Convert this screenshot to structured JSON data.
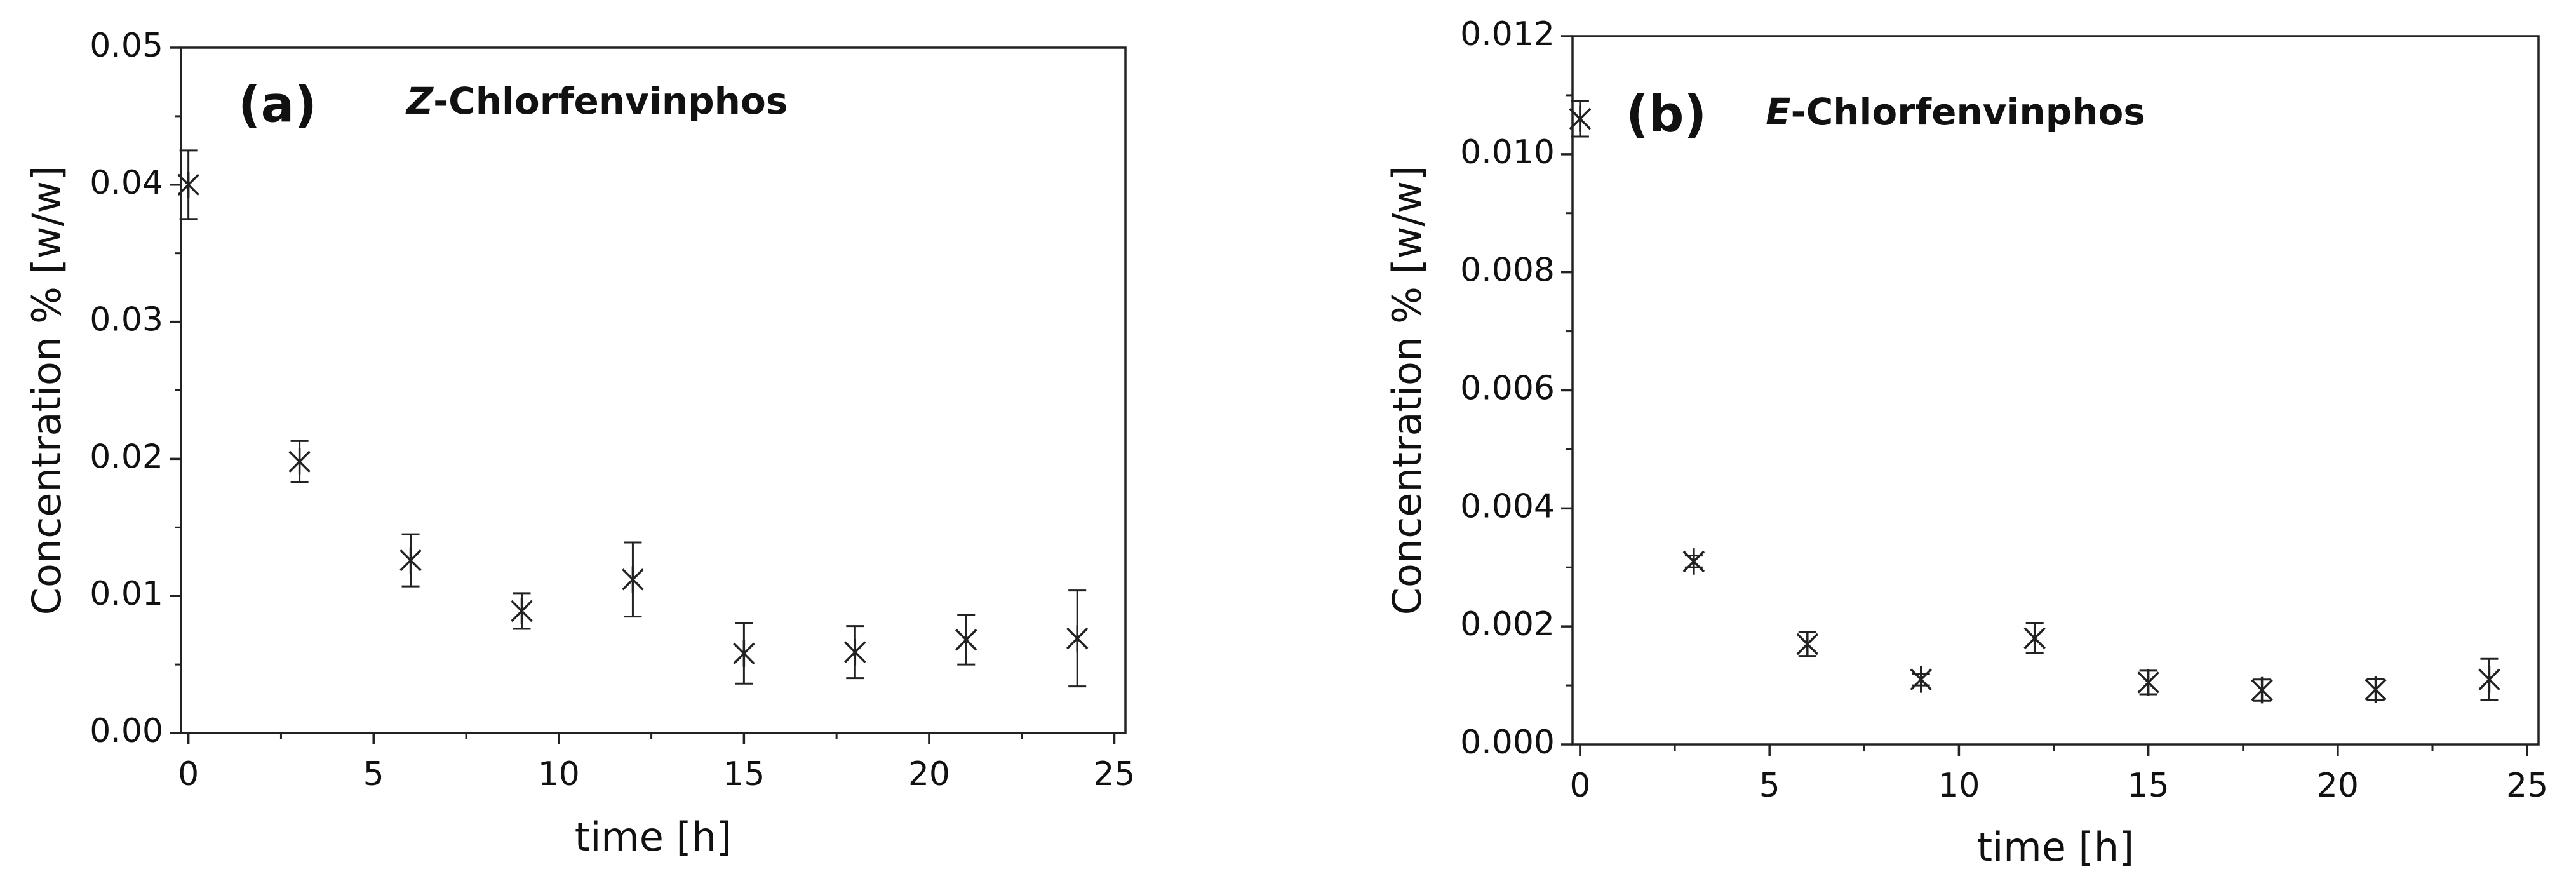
{
  "chart_data": [
    {
      "type": "scatter",
      "label": "(a)",
      "annotation": "Z-Chlorfenvinphos",
      "xlabel": "time [h]",
      "ylabel": "Concentration % [w/w]",
      "x": [
        0,
        3,
        6,
        9,
        12,
        15,
        18,
        21,
        24
      ],
      "series": [
        {
          "color": "#222222",
          "values": [
            0.04,
            0.0198,
            0.0126,
            0.0089,
            0.0112,
            0.0058,
            0.0059,
            0.0068,
            0.0069
          ],
          "errors": [
            0.0025,
            0.0015,
            0.0019,
            0.0013,
            0.0027,
            0.0022,
            0.0019,
            0.0018,
            0.0035
          ]
        }
      ],
      "xlim": [
        -0.2,
        25.3
      ],
      "xticks": [
        0,
        5,
        10,
        15,
        20,
        25
      ],
      "ylim": [
        0,
        0.05
      ],
      "yticks": [
        {
          "value": 0,
          "label": "0.00"
        },
        0.01,
        0.02,
        0.03,
        0.04,
        0.05
      ]
    },
    {
      "type": "scatter",
      "label": "(b)",
      "annotation": "E-Chlorfenvinphos",
      "xlabel": "time [h]",
      "ylabel": "Concentration % [w/w]",
      "x": [
        0,
        3,
        6,
        9,
        12,
        15,
        18,
        21,
        24
      ],
      "series": [
        {
          "color": "#222222",
          "values": [
            0.0106,
            0.0031,
            0.0017,
            0.0011,
            0.0018,
            0.00105,
            0.00092,
            0.00093,
            0.0011
          ],
          "errors": [
            0.0003,
            0.0001,
            0.0002,
            0.0001,
            0.00025,
            0.0002,
            0.00018,
            0.00018,
            0.00035
          ]
        }
      ],
      "xlim": [
        -0.2,
        25.3
      ],
      "xticks": [
        0,
        5,
        10,
        15,
        20,
        25
      ],
      "ylim": [
        0,
        0.012
      ],
      "yticks": [
        {
          "value": 0,
          "label": "0.000"
        },
        0.002,
        0.004,
        0.006,
        0.008,
        {
          "value": 0.01,
          "label": "0.010"
        },
        0.012
      ]
    }
  ]
}
